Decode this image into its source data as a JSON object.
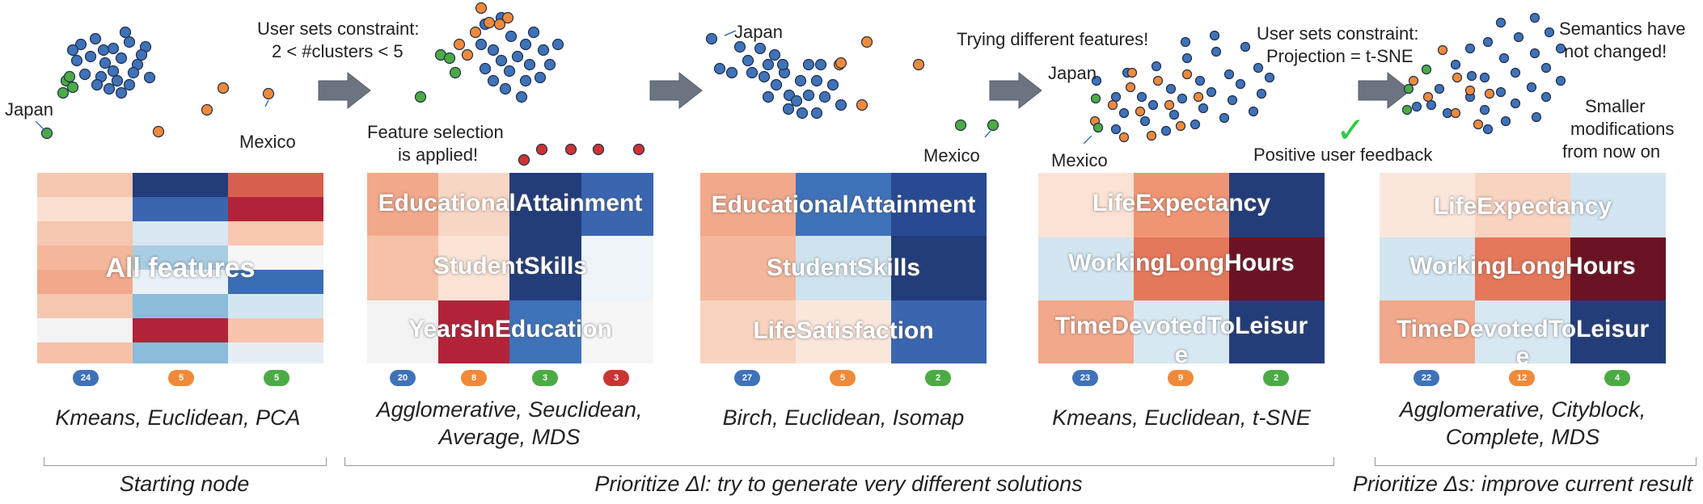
{
  "colors": {
    "blue": "#3f72b8",
    "orange": "#f08a3a",
    "green": "#4cab45",
    "red": "#cc3333"
  },
  "annotations": {
    "japan1": "Japan",
    "mexico1": "Mexico",
    "constraint1_line1": "User sets constraint:",
    "constraint1_line2": "2 < #clusters < 5",
    "feature_sel_line1": "Feature selection",
    "feature_sel_line2": "is applied!",
    "japan3": "Japan",
    "mexico3": "Mexico",
    "trying": "Trying different features!",
    "japan4": "Japan",
    "mexico4": "Mexico",
    "constraint2_line1": "User sets constraint:",
    "constraint2_line2": "Projection = t-SNE",
    "positive": "Positive user feedback",
    "semantics_line1": "Semantics have",
    "semantics_line2": "not changed!",
    "smaller_line1": "Smaller",
    "smaller_line2": "modifications",
    "smaller_line3": "from now on"
  },
  "panels": [
    {
      "features": [
        "All features"
      ],
      "badges": [
        "24",
        "5",
        "5"
      ],
      "caption_line1": "Kmeans, Euclidean, PCA",
      "caption_line2": ""
    },
    {
      "features": [
        "EducationalAttainment",
        "StudentSkills",
        "YearsInEducation"
      ],
      "badges": [
        "20",
        "8",
        "3",
        "3"
      ],
      "caption_line1": "Agglomerative, Seuclidean,",
      "caption_line2": "Average, MDS"
    },
    {
      "features": [
        "EducationalAttainment",
        "StudentSkills",
        "LifeSatisfaction"
      ],
      "badges": [
        "27",
        "5",
        "2"
      ],
      "caption_line1": "Birch, Euclidean, Isomap",
      "caption_line2": ""
    },
    {
      "features": [
        "LifeExpectancy",
        "WorkingLongHours",
        "TimeDevotedToLeisur",
        "e"
      ],
      "badges": [
        "23",
        "9",
        "2"
      ],
      "caption_line1": "Kmeans, Euclidean, t-SNE",
      "caption_line2": ""
    },
    {
      "features": [
        "LifeExpectancy",
        "WorkingLongHours",
        "TimeDevotedToLeisur",
        "e"
      ],
      "badges": [
        "22",
        "12",
        "4"
      ],
      "caption_line1": "Agglomerative, Cityblock,",
      "caption_line2": "Complete, MDS"
    }
  ],
  "sections": {
    "start": "Starting node",
    "prioritize_l": "Prioritize Δl: try to generate very different solutions",
    "prioritize_s": "Prioritize Δs: improve current result"
  },
  "icons": {
    "arrow": "arrow-right-icon",
    "check": "checkmark-icon"
  }
}
